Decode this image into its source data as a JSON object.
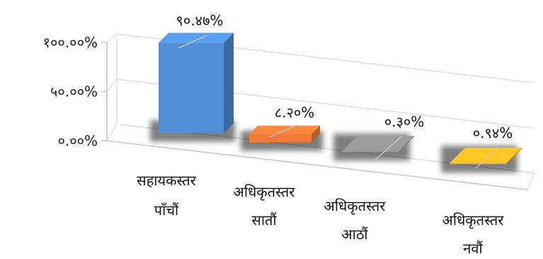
{
  "chart_data": {
    "type": "bar",
    "style": "3d-column",
    "categories": [
      {
        "line1": "सहायकस्तर",
        "line2": "पाँचौं"
      },
      {
        "line1": "अधिकृतस्तर",
        "line2": "सातौं"
      },
      {
        "line1": "अधिकृतस्तर",
        "line2": "आठौं"
      },
      {
        "line1": "अधिकृतस्तर",
        "line2": "नवौं"
      }
    ],
    "values": [
      90.47,
      8.2,
      0.3,
      0.94
    ],
    "data_labels": [
      "९०.४७%",
      "८.२०%",
      "०.३०%",
      "०.९४%"
    ],
    "ylim": [
      0,
      100
    ],
    "y_ticks": [
      {
        "value": 0,
        "label": "०.००%"
      },
      {
        "value": 50,
        "label": "५०.००%"
      },
      {
        "value": 100,
        "label": "१००.००%"
      }
    ],
    "gridlines": true,
    "legend": "none",
    "colors": [
      "#4f8fd8",
      "#ef7a3a",
      "#8c8c8c",
      "#e8b21f"
    ],
    "title": "",
    "xlabel": "",
    "ylabel": ""
  }
}
